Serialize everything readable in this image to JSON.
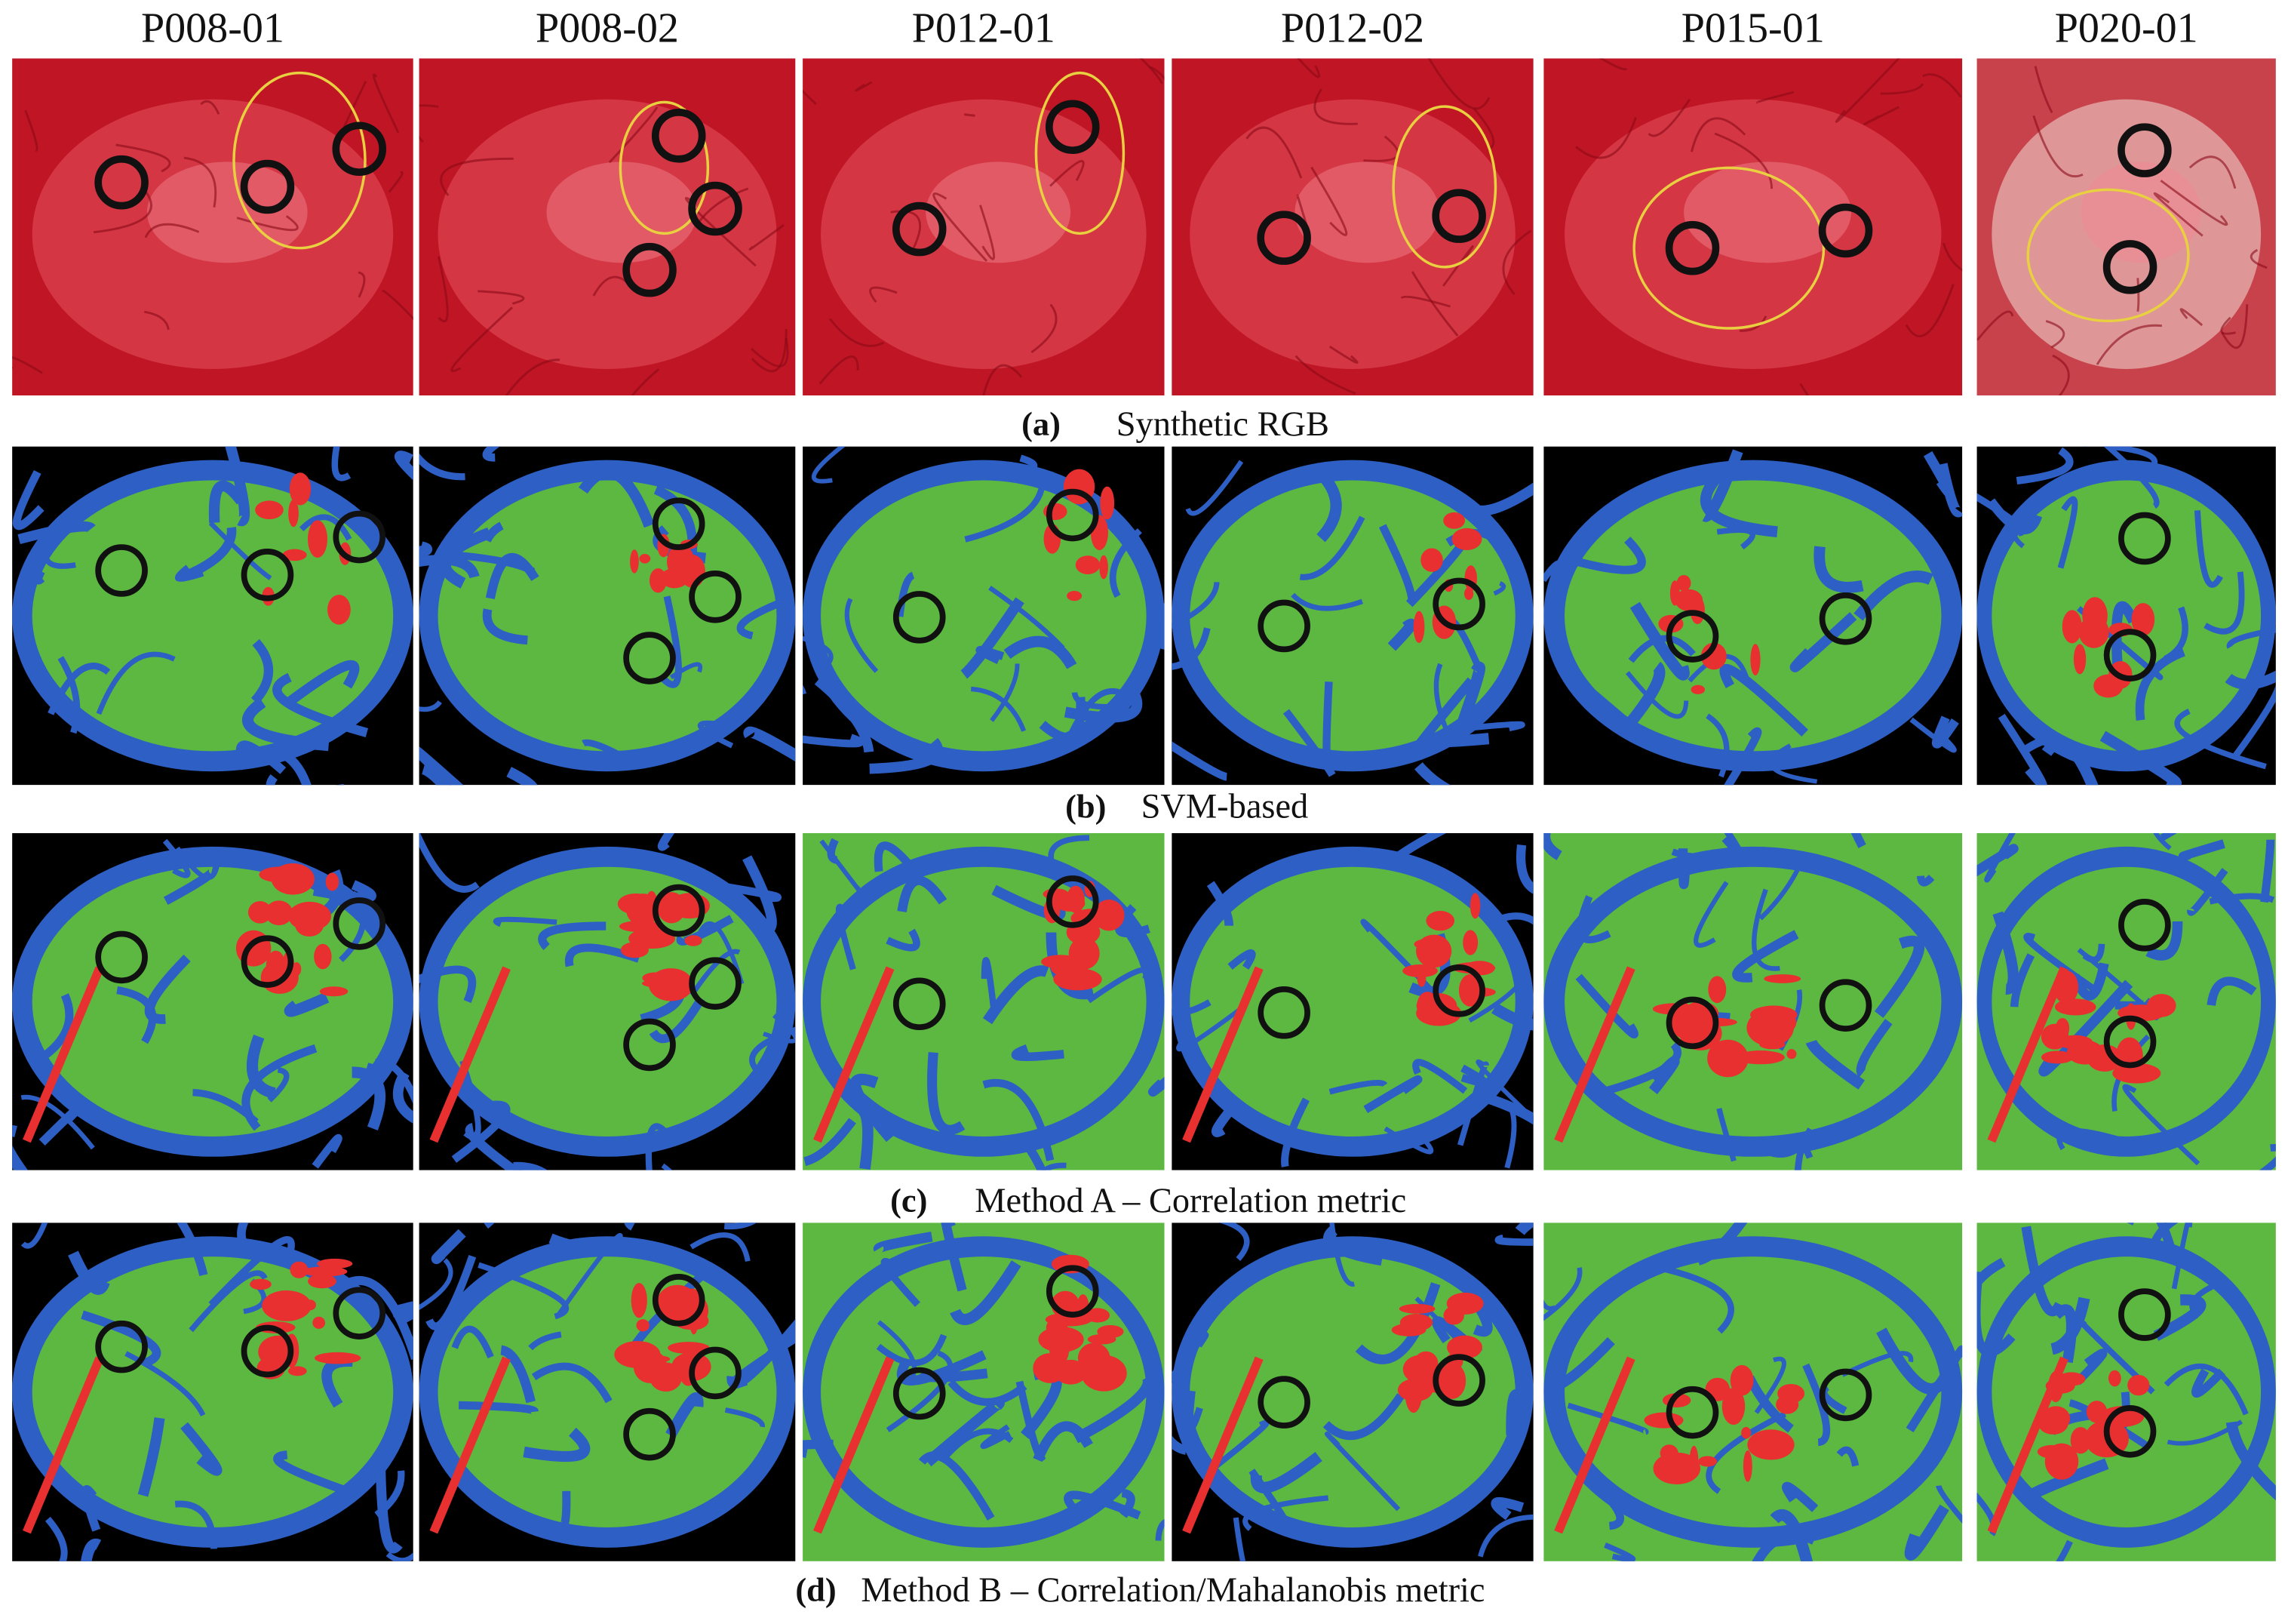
{
  "columns": [
    "P008-01",
    "P008-02",
    "P012-01",
    "P012-02",
    "P015-01",
    "P020-01"
  ],
  "rows": [
    {
      "label": "(a)",
      "caption": "Synthetic RGB"
    },
    {
      "label": "(b)",
      "caption": "SVM-based"
    },
    {
      "label": "(c)",
      "caption": "Method A – Correlation metric"
    },
    {
      "label": "(d)",
      "caption": "Method B – Correlation/Mahalanobis metric"
    }
  ]
}
